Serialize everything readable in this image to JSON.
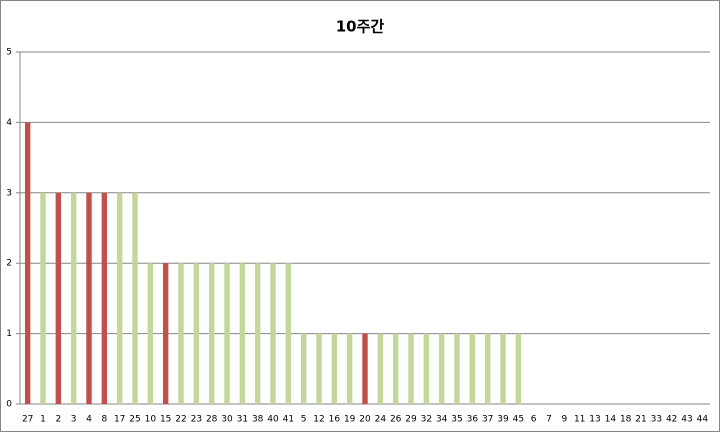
{
  "chart_data": {
    "type": "bar",
    "title": "10주간",
    "categories": [
      "27",
      "1",
      "2",
      "3",
      "4",
      "8",
      "17",
      "25",
      "10",
      "15",
      "22",
      "23",
      "28",
      "30",
      "31",
      "38",
      "40",
      "41",
      "5",
      "12",
      "16",
      "19",
      "20",
      "24",
      "26",
      "29",
      "32",
      "34",
      "35",
      "36",
      "37",
      "39",
      "45",
      "6",
      "7",
      "9",
      "11",
      "13",
      "14",
      "18",
      "21",
      "33",
      "42",
      "43",
      "44"
    ],
    "values": [
      4,
      3,
      3,
      3,
      3,
      3,
      3,
      3,
      2,
      2,
      2,
      2,
      2,
      2,
      2,
      2,
      2,
      2,
      1,
      1,
      1,
      1,
      1,
      1,
      1,
      1,
      1,
      1,
      1,
      1,
      1,
      1,
      1,
      0,
      0,
      0,
      0,
      0,
      0,
      0,
      0,
      0,
      0,
      0,
      0
    ],
    "colors": [
      "#c0504d",
      "#c3d69b",
      "#c0504d",
      "#c3d69b",
      "#c0504d",
      "#c0504d",
      "#c3d69b",
      "#c3d69b",
      "#c3d69b",
      "#c0504d",
      "#c3d69b",
      "#c3d69b",
      "#c3d69b",
      "#c3d69b",
      "#c3d69b",
      "#c3d69b",
      "#c3d69b",
      "#c3d69b",
      "#c3d69b",
      "#c3d69b",
      "#c3d69b",
      "#c3d69b",
      "#c0504d",
      "#c3d69b",
      "#c3d69b",
      "#c3d69b",
      "#c3d69b",
      "#c3d69b",
      "#c3d69b",
      "#c3d69b",
      "#c3d69b",
      "#c3d69b",
      "#c3d69b",
      "#c3d69b",
      "#c3d69b",
      "#c3d69b",
      "#c3d69b",
      "#c3d69b",
      "#c3d69b",
      "#c3d69b",
      "#c3d69b",
      "#c3d69b",
      "#c3d69b",
      "#c3d69b",
      "#c3d69b"
    ],
    "ylim": [
      0,
      5
    ],
    "yticks": [
      0,
      1,
      2,
      3,
      4,
      5
    ],
    "grid": true
  }
}
